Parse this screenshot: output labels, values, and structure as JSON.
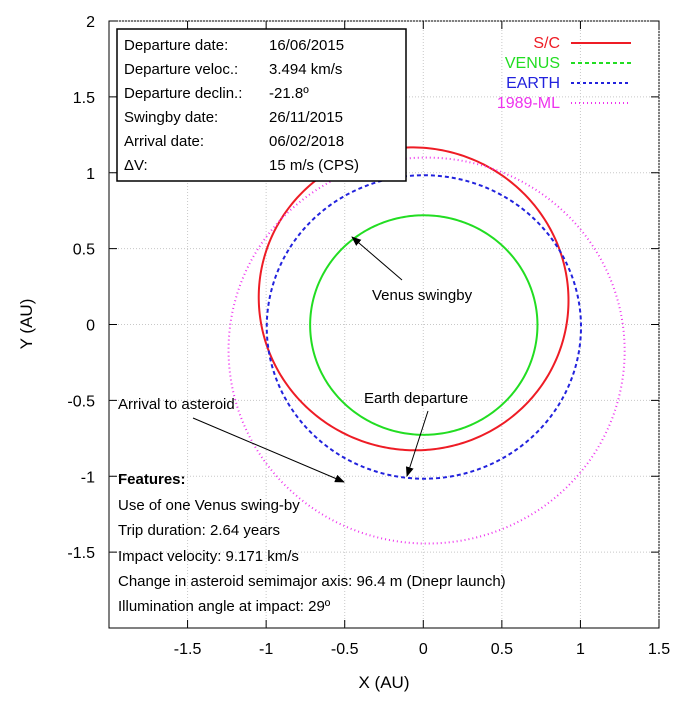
{
  "chart_data": {
    "type": "line",
    "xlabel": "X (AU)",
    "ylabel": "Y (AU)",
    "xlim": [
      -2,
      1.5
    ],
    "ylim": [
      -2,
      2
    ],
    "xticks": [
      "-1.5",
      "-1",
      "-0.5",
      "0",
      "0.5",
      "1",
      "1.5"
    ],
    "xtick_values": [
      -1.5,
      -1,
      -0.5,
      0,
      0.5,
      1,
      1.5
    ],
    "yticks": [
      "2",
      "1.5",
      "1",
      "0.5",
      "0",
      "-0.5",
      "-1",
      "-1.5"
    ],
    "ytick_values": [
      2,
      1.5,
      1,
      0.5,
      0,
      -0.5,
      -1,
      -1.5
    ],
    "grid": true,
    "legend_position": "top-right",
    "series": [
      {
        "name": "S/C",
        "color": "#ee1c25",
        "dash": "solid",
        "ellipse": {
          "a": 1.0,
          "e": 0.18,
          "omega_deg": -70
        }
      },
      {
        "name": "VENUS",
        "color": "#22dd22",
        "dash": "solid",
        "ellipse": {
          "a": 0.7233,
          "e": 0.0068,
          "omega_deg": 131.5
        }
      },
      {
        "name": "EARTH",
        "color": "#2222dd",
        "dash": "dashed",
        "ellipse": {
          "a": 1.0,
          "e": 0.0167,
          "omega_deg": 102.9
        }
      },
      {
        "name": "1989-ML",
        "color": "#ee33ee",
        "dash": "dotted",
        "ellipse": {
          "a": 1.272,
          "e": 0.136,
          "omega_deg": 97
        }
      }
    ],
    "info_box": [
      {
        "label": "Departure date:",
        "value": "16/06/2015"
      },
      {
        "label": "Departure veloc.:",
        "value": "3.494 km/s"
      },
      {
        "label": "Departure declin.:",
        "value": "-21.8º"
      },
      {
        "label": "Swingby date:",
        "value": "26/11/2015"
      },
      {
        "label": "Arrival date:",
        "value": "06/02/2018"
      },
      {
        "label": "ΔV:",
        "value": "15 m/s (CPS)"
      }
    ],
    "annotations": [
      {
        "text": "Venus swingby",
        "point": [
          -0.45,
          0.56
        ]
      },
      {
        "text": "Earth departure",
        "point": [
          -0.1,
          -1.0
        ]
      },
      {
        "text": "Arrival to asteroid",
        "point": [
          -0.5,
          -1.05
        ]
      }
    ],
    "features": {
      "title": "Features:",
      "lines": [
        "Use of one Venus swing-by",
        "Trip duration: 2.64 years",
        "Impact velocity: 9.171 km/s",
        "Change in asteroid semimajor axis: 96.4 m (Dnepr launch)",
        "Illumination angle at impact: 29º"
      ]
    }
  }
}
